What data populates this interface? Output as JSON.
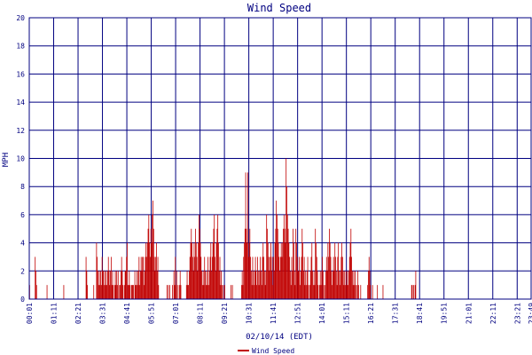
{
  "chart_data": {
    "type": "bar",
    "title": "Wind Speed",
    "xlabel": "02/10/14 (EDT)",
    "ylabel": "MPH",
    "ylim": [
      0,
      20
    ],
    "yticks": [
      0,
      2,
      4,
      6,
      8,
      10,
      12,
      14,
      16,
      18,
      20
    ],
    "x_range_minutes": [
      0,
      1440
    ],
    "sample_interval_minutes": 1,
    "x_tick_labels": [
      "00:01",
      "01:11",
      "02:21",
      "03:31",
      "04:41",
      "05:51",
      "07:01",
      "08:11",
      "09:21",
      "10:31",
      "11:41",
      "12:51",
      "14:01",
      "15:11",
      "16:21",
      "17:31",
      "18:41",
      "19:51",
      "21:01",
      "22:11",
      "23:21",
      "23:49"
    ],
    "grid": true,
    "legend_position": "bottom-center",
    "series": [
      {
        "name": "Wind Speed",
        "color": "#c00000",
        "values": [
          1,
          0,
          0,
          0,
          0,
          0,
          0,
          0,
          3,
          2,
          1,
          0,
          0,
          0,
          0,
          0,
          0,
          0,
          0,
          0,
          0,
          0,
          0,
          0,
          0,
          1,
          0,
          0,
          0,
          0,
          0,
          0,
          0,
          0,
          0,
          0,
          0,
          0,
          0,
          0,
          0,
          0,
          0,
          0,
          0,
          0,
          0,
          0,
          0,
          1,
          0,
          0,
          0,
          0,
          0,
          0,
          0,
          0,
          0,
          0,
          0,
          0,
          0,
          0,
          0,
          0,
          0,
          0,
          0,
          0,
          0,
          0,
          0,
          0,
          0,
          0,
          0,
          0,
          0,
          0,
          0,
          3,
          2,
          1,
          0,
          0,
          0,
          0,
          0,
          0,
          0,
          0,
          1,
          0,
          0,
          0,
          4,
          3,
          2,
          1,
          2,
          1,
          2,
          1,
          3,
          2,
          2,
          1,
          2,
          1,
          2,
          1,
          2,
          3,
          2,
          1,
          2,
          3,
          1,
          2,
          1,
          0,
          1,
          2,
          1,
          2,
          1,
          2,
          0,
          1,
          1,
          2,
          3,
          2,
          1,
          0,
          1,
          2,
          2,
          3,
          4,
          1,
          1,
          2,
          1,
          0,
          1,
          1,
          1,
          1,
          0,
          2,
          1,
          1,
          2,
          1,
          2,
          3,
          1,
          2,
          3,
          2,
          3,
          3,
          1,
          2,
          3,
          4,
          3,
          4,
          5,
          6,
          4,
          3,
          5,
          4,
          6,
          7,
          5,
          3,
          2,
          3,
          4,
          2,
          3,
          1,
          0,
          0,
          0,
          0,
          0,
          0,
          0,
          0,
          0,
          0,
          0,
          1,
          0,
          1,
          0,
          1,
          0,
          0,
          0,
          1,
          0,
          2,
          1,
          3,
          1,
          2,
          0,
          1,
          0,
          1,
          2,
          1,
          0,
          0,
          0,
          0,
          0,
          0,
          0,
          1,
          2,
          1,
          1,
          2,
          3,
          4,
          5,
          4,
          3,
          2,
          4,
          3,
          5,
          4,
          3,
          2,
          4,
          6,
          5,
          4,
          3,
          2,
          1,
          2,
          1,
          3,
          2,
          1,
          2,
          1,
          3,
          1,
          2,
          3,
          4,
          2,
          3,
          4,
          5,
          6,
          3,
          2,
          4,
          5,
          6,
          4,
          2,
          3,
          1,
          2,
          1,
          0,
          1,
          0,
          1,
          0,
          0,
          0,
          0,
          0,
          0,
          0,
          0,
          1,
          0,
          1,
          0,
          0,
          0,
          0,
          0,
          0,
          0,
          0,
          0,
          0,
          0,
          0,
          1,
          2,
          1,
          3,
          4,
          5,
          9,
          5,
          4,
          9,
          3,
          4,
          5,
          3,
          2,
          1,
          3,
          2,
          1,
          2,
          3,
          2,
          1,
          3,
          2,
          1,
          2,
          3,
          2,
          1,
          3,
          4,
          3,
          2,
          1,
          2,
          6,
          5,
          4,
          3,
          2,
          3,
          4,
          2,
          3,
          1,
          3,
          2,
          4,
          5,
          7,
          6,
          5,
          4,
          3,
          2,
          3,
          4,
          3,
          4,
          5,
          6,
          5,
          4,
          10,
          8,
          6,
          5,
          4,
          3,
          2,
          1,
          3,
          2,
          5,
          4,
          2,
          1,
          5,
          4,
          3,
          2,
          2,
          3,
          1,
          2,
          3,
          5,
          4,
          2,
          3,
          1,
          2,
          1,
          2,
          3,
          1,
          0,
          1,
          2,
          3,
          4,
          2,
          1,
          2,
          1,
          5,
          4,
          3,
          2,
          1,
          0,
          1,
          2,
          1,
          2,
          3,
          2,
          1,
          0,
          1,
          2,
          3,
          2,
          4,
          3,
          5,
          4,
          3,
          2,
          1,
          2,
          3,
          2,
          4,
          3,
          2,
          1,
          3,
          4,
          2,
          1,
          2,
          3,
          4,
          3,
          2,
          1,
          2,
          1,
          2,
          1,
          2,
          1,
          2,
          3,
          4,
          5,
          3,
          2,
          1,
          2,
          1,
          2,
          1,
          0,
          1,
          2,
          1,
          0,
          0,
          1,
          0,
          0,
          0,
          0,
          0,
          0,
          0,
          0,
          0,
          1,
          2,
          3,
          2,
          1,
          0,
          0,
          1,
          0,
          0,
          0,
          0,
          0,
          0,
          1,
          0,
          0,
          0,
          0,
          0,
          0,
          0,
          1,
          0,
          0,
          0,
          0,
          0,
          0,
          0,
          0,
          0,
          0,
          0,
          0,
          0,
          0,
          0,
          0,
          0,
          0,
          0,
          0,
          0,
          0,
          0,
          0,
          0,
          0,
          0,
          0,
          0,
          0,
          0,
          0,
          0,
          0,
          0,
          0,
          0,
          0,
          0,
          0,
          1,
          1,
          0,
          1,
          0,
          1,
          2,
          0,
          0,
          0,
          0,
          0,
          0,
          0,
          0,
          0,
          0,
          0,
          0,
          0,
          0,
          0,
          0,
          0,
          0,
          0,
          0,
          0,
          0,
          0,
          0,
          0,
          0,
          0,
          0,
          0,
          0,
          0,
          0,
          0,
          0,
          0,
          0,
          0,
          0,
          0,
          0,
          0,
          0,
          0,
          0,
          0,
          0,
          0,
          0,
          0,
          0,
          0,
          0,
          0,
          0,
          0,
          0,
          0,
          0,
          0,
          0,
          0,
          0,
          0,
          0,
          0,
          0,
          0,
          0,
          0,
          0,
          0,
          0,
          0,
          0,
          0,
          0,
          0,
          0,
          0
        ]
      }
    ]
  }
}
